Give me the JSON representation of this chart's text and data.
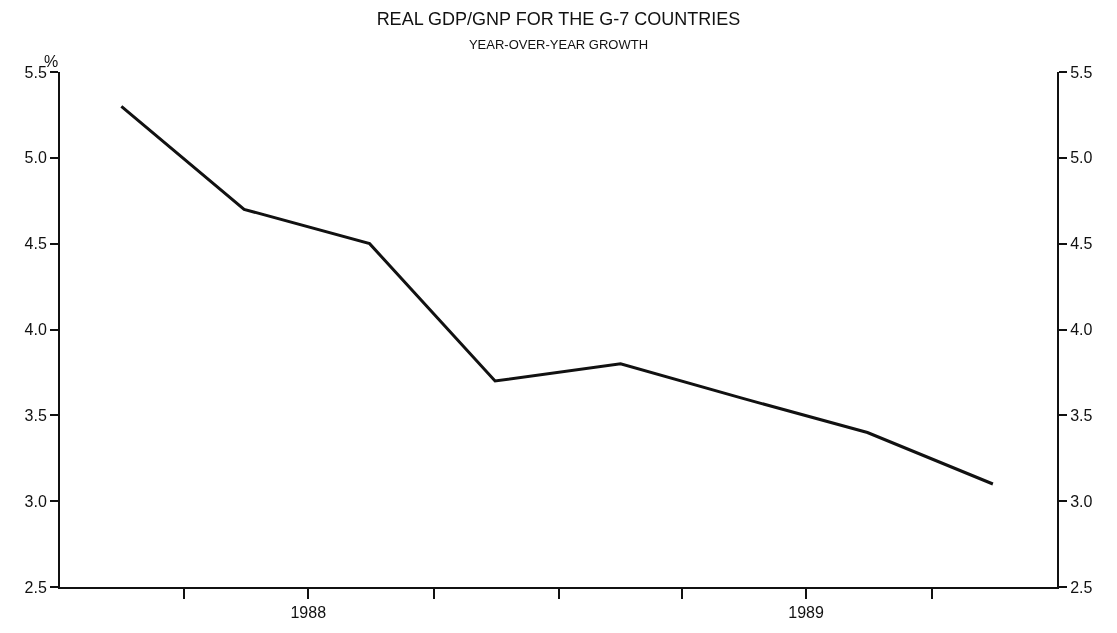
{
  "chart_data": {
    "type": "line",
    "title": "REAL GDP/GNP FOR THE G-7 COUNTRIES",
    "subtitle": "YEAR-OVER-YEAR GROWTH",
    "ylabel": "%",
    "x": [
      "1988-02-15",
      "1988-05-15",
      "1988-08-15",
      "1988-11-15",
      "1989-02-15",
      "1989-05-15",
      "1989-08-15",
      "1989-11-15"
    ],
    "series": [
      {
        "color": "#111111",
        "values": [
          5.3,
          4.7,
          4.5,
          3.7,
          3.8,
          3.6,
          3.4,
          3.1
        ]
      }
    ],
    "xlim": [
      "1988-01-01",
      "1990-01-01"
    ],
    "xticks": [
      {
        "value": "1988-04-01",
        "label": null
      },
      {
        "value": "1988-07-01",
        "label": "1988"
      },
      {
        "value": "1988-10-01",
        "label": null
      },
      {
        "value": "1989-01-01",
        "label": null
      },
      {
        "value": "1989-04-01",
        "label": null
      },
      {
        "value": "1989-07-01",
        "label": "1989"
      },
      {
        "value": "1989-10-01",
        "label": null
      }
    ],
    "ylim": [
      2.5,
      5.5
    ],
    "yticks": [
      {
        "value": 2.5,
        "label": "2.5"
      },
      {
        "value": 3,
        "label": "3.0"
      },
      {
        "value": 3.5,
        "label": "3.5"
      },
      {
        "value": 4,
        "label": "4.0"
      },
      {
        "value": 4.5,
        "label": "4.5"
      },
      {
        "value": 5,
        "label": "5.0"
      },
      {
        "value": 5.5,
        "label": "5.5"
      }
    ],
    "y2lim": [
      2.5,
      5.5
    ],
    "y2ticks": [
      {
        "value": 2.5,
        "label": "2.5"
      },
      {
        "value": 3,
        "label": "3.0"
      },
      {
        "value": 3.5,
        "label": "3.5"
      },
      {
        "value": 4,
        "label": "4.0"
      },
      {
        "value": 4.5,
        "label": "4.5"
      },
      {
        "value": 5,
        "label": "5.0"
      },
      {
        "value": 5.5,
        "label": "5.5"
      }
    ],
    "legend": false,
    "marker": "none",
    "line_style": "solid"
  }
}
